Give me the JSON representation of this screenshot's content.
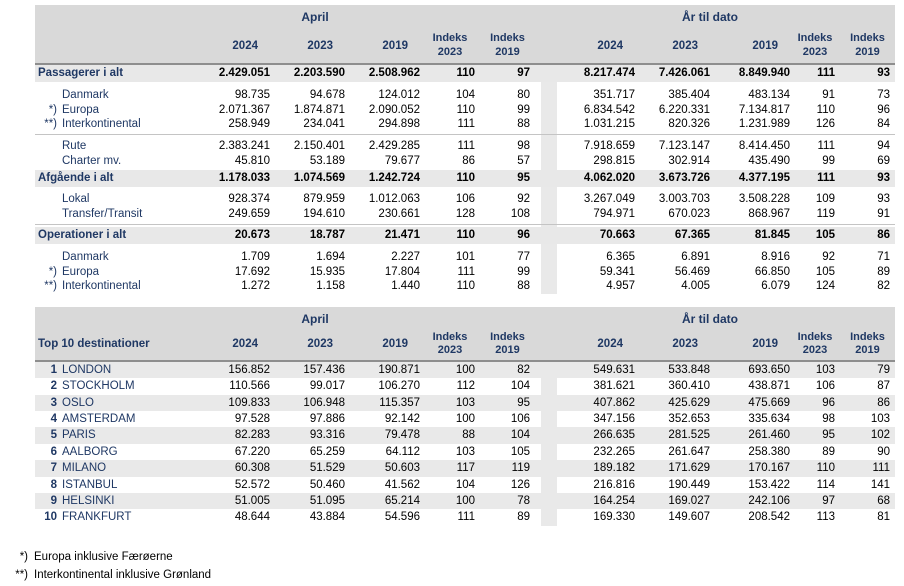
{
  "colors": {
    "navy": "#1F3864",
    "header_gray": "#D9D9D9",
    "row_gray": "#E8E8E8",
    "band_gray": "#E9E9E9",
    "dark_line": "#8E8E8E",
    "thin_line": "#C4C4C4"
  },
  "columns": {
    "april_title": "April",
    "ytd_title": "År til dato",
    "years": [
      "2024",
      "2023",
      "2019"
    ],
    "indeks_label": "Indeks",
    "indeks_years": [
      "2023",
      "2019"
    ]
  },
  "table1": {
    "rows": [
      {
        "marker": "",
        "label": "Passagerer i alt",
        "type": "total",
        "april": [
          "2.429.051",
          "2.203.590",
          "2.508.962",
          "110",
          "97"
        ],
        "ytd": [
          "8.217.474",
          "7.426.061",
          "8.849.940",
          "111",
          "93"
        ]
      },
      {
        "marker": "",
        "label": "Danmark",
        "type": "sub",
        "april": [
          "98.735",
          "94.678",
          "124.012",
          "104",
          "80"
        ],
        "ytd": [
          "351.717",
          "385.404",
          "483.134",
          "91",
          "73"
        ]
      },
      {
        "marker": "*)",
        "label": "Europa",
        "type": "sub",
        "april": [
          "2.071.367",
          "1.874.871",
          "2.090.052",
          "110",
          "99"
        ],
        "ytd": [
          "6.834.542",
          "6.220.331",
          "7.134.817",
          "110",
          "96"
        ]
      },
      {
        "marker": "**)",
        "label": "Interkontinental",
        "type": "sub",
        "april": [
          "258.949",
          "234.041",
          "294.898",
          "111",
          "88"
        ],
        "ytd": [
          "1.031.215",
          "820.326",
          "1.231.989",
          "126",
          "84"
        ]
      },
      {
        "marker": "",
        "label": "Rute",
        "type": "sub",
        "april": [
          "2.383.241",
          "2.150.401",
          "2.429.285",
          "111",
          "98"
        ],
        "ytd": [
          "7.918.659",
          "7.123.147",
          "8.414.450",
          "111",
          "94"
        ]
      },
      {
        "marker": "",
        "label": "Charter mv.",
        "type": "sub",
        "april": [
          "45.810",
          "53.189",
          "79.677",
          "86",
          "57"
        ],
        "ytd": [
          "298.815",
          "302.914",
          "435.490",
          "99",
          "69"
        ]
      },
      {
        "marker": "",
        "label": "Afgående i alt",
        "type": "total",
        "april": [
          "1.178.033",
          "1.074.569",
          "1.242.724",
          "110",
          "95"
        ],
        "ytd": [
          "4.062.020",
          "3.673.726",
          "4.377.195",
          "111",
          "93"
        ]
      },
      {
        "marker": "",
        "label": "Lokal",
        "type": "sub",
        "april": [
          "928.374",
          "879.959",
          "1.012.063",
          "106",
          "92"
        ],
        "ytd": [
          "3.267.049",
          "3.003.703",
          "3.508.228",
          "109",
          "93"
        ]
      },
      {
        "marker": "",
        "label": "Transfer/Transit",
        "type": "sub",
        "april": [
          "249.659",
          "194.610",
          "230.661",
          "128",
          "108"
        ],
        "ytd": [
          "794.971",
          "670.023",
          "868.967",
          "119",
          "91"
        ]
      },
      {
        "marker": "",
        "label": "Operationer i alt",
        "type": "total",
        "april": [
          "20.673",
          "18.787",
          "21.471",
          "110",
          "96"
        ],
        "ytd": [
          "70.663",
          "67.365",
          "81.845",
          "105",
          "86"
        ]
      },
      {
        "marker": "",
        "label": "Danmark",
        "type": "sub",
        "april": [
          "1.709",
          "1.694",
          "2.227",
          "101",
          "77"
        ],
        "ytd": [
          "6.365",
          "6.891",
          "8.916",
          "92",
          "71"
        ]
      },
      {
        "marker": "*)",
        "label": "Europa",
        "type": "sub",
        "april": [
          "17.692",
          "15.935",
          "17.804",
          "111",
          "99"
        ],
        "ytd": [
          "59.341",
          "56.469",
          "66.850",
          "105",
          "89"
        ]
      },
      {
        "marker": "**)",
        "label": "Interkontinental",
        "type": "sub",
        "april": [
          "1.272",
          "1.158",
          "1.440",
          "110",
          "88"
        ],
        "ytd": [
          "4.957",
          "4.005",
          "6.079",
          "124",
          "82"
        ]
      }
    ]
  },
  "table2": {
    "title": "Top 10 destinationer",
    "rows": [
      {
        "marker": "1",
        "label": "LONDON",
        "april": [
          "156.852",
          "157.436",
          "190.871",
          "100",
          "82"
        ],
        "ytd": [
          "549.631",
          "533.848",
          "693.650",
          "103",
          "79"
        ]
      },
      {
        "marker": "2",
        "label": "STOCKHOLM",
        "april": [
          "110.566",
          "99.017",
          "106.270",
          "112",
          "104"
        ],
        "ytd": [
          "381.621",
          "360.410",
          "438.871",
          "106",
          "87"
        ]
      },
      {
        "marker": "3",
        "label": "OSLO",
        "april": [
          "109.833",
          "106.948",
          "115.357",
          "103",
          "95"
        ],
        "ytd": [
          "407.862",
          "425.629",
          "475.669",
          "96",
          "86"
        ]
      },
      {
        "marker": "4",
        "label": "AMSTERDAM",
        "april": [
          "97.528",
          "97.886",
          "92.142",
          "100",
          "106"
        ],
        "ytd": [
          "347.156",
          "352.653",
          "335.634",
          "98",
          "103"
        ]
      },
      {
        "marker": "5",
        "label": "PARIS",
        "april": [
          "82.283",
          "93.316",
          "79.478",
          "88",
          "104"
        ],
        "ytd": [
          "266.635",
          "281.525",
          "261.460",
          "95",
          "102"
        ]
      },
      {
        "marker": "6",
        "label": "AALBORG",
        "april": [
          "67.220",
          "65.259",
          "64.112",
          "103",
          "105"
        ],
        "ytd": [
          "232.265",
          "261.647",
          "258.380",
          "89",
          "90"
        ]
      },
      {
        "marker": "7",
        "label": "MILANO",
        "april": [
          "60.308",
          "51.529",
          "50.603",
          "117",
          "119"
        ],
        "ytd": [
          "189.182",
          "171.629",
          "170.167",
          "110",
          "111"
        ]
      },
      {
        "marker": "8",
        "label": "ISTANBUL",
        "april": [
          "52.572",
          "50.460",
          "41.562",
          "104",
          "126"
        ],
        "ytd": [
          "216.816",
          "190.449",
          "153.422",
          "114",
          "141"
        ]
      },
      {
        "marker": "9",
        "label": "HELSINKI",
        "april": [
          "51.005",
          "51.095",
          "65.214",
          "100",
          "78"
        ],
        "ytd": [
          "164.254",
          "169.027",
          "242.106",
          "97",
          "68"
        ]
      },
      {
        "marker": "10",
        "label": "FRANKFURT",
        "april": [
          "48.644",
          "43.884",
          "54.596",
          "111",
          "89"
        ],
        "ytd": [
          "169.330",
          "149.607",
          "208.542",
          "113",
          "81"
        ]
      }
    ]
  },
  "footnotes": [
    {
      "marker": "*)",
      "text": "Europa inklusive Færøerne"
    },
    {
      "marker": "**)",
      "text": "Interkontinental inklusive Grønland"
    }
  ]
}
